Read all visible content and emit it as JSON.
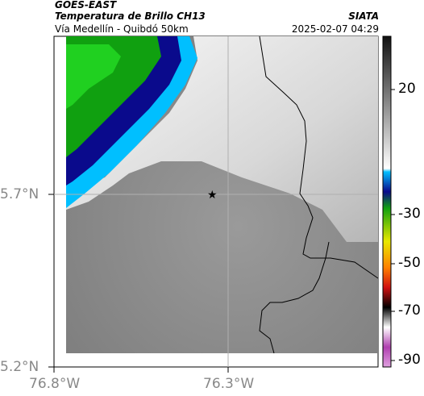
{
  "header": {
    "satellite": "GOES-EAST",
    "product": "Temperatura de Brillo CH13",
    "route": "Vía Medellín - Quibdó 50km",
    "agency": "SIATA",
    "datetime": "2025-02-07 04:29"
  },
  "axes": {
    "y_ticks": [
      "5.7°N",
      "5.2°N"
    ],
    "x_ticks": [
      "76.8°W",
      "76.3°W"
    ]
  },
  "colorbar": {
    "ticks": [
      "20",
      "-30",
      "-50",
      "-70",
      "-90"
    ],
    "colors": {
      "warm_top": "#111111",
      "warm_bottom": "#ffffff",
      "cyan": "#00bfff",
      "blue": "#0a0a8c",
      "green": "#10a010",
      "yellow": "#e8e800",
      "red": "#d01010",
      "black": "#000000",
      "magenta": "#b040b0"
    }
  },
  "map": {
    "marker_icon": "star-icon",
    "colors": {
      "background_gray": "#8a8a8a",
      "light_cloud": "#f0f0f0",
      "gridline": "#b0b0b0",
      "border": "#000000"
    }
  }
}
